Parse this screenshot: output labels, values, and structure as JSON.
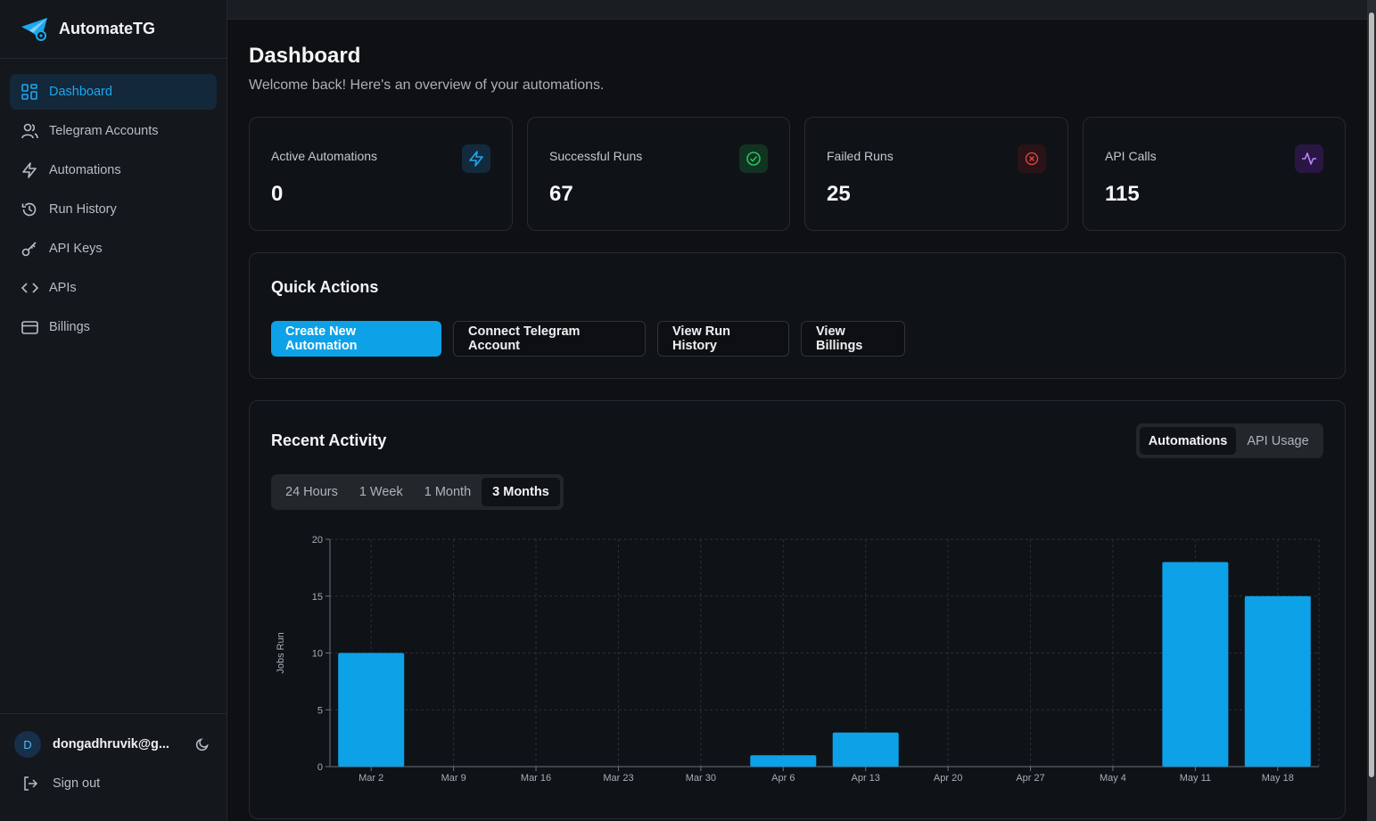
{
  "app": {
    "name": "AutomateTG"
  },
  "sidebar": {
    "items": [
      {
        "label": "Dashboard",
        "icon": "grid-icon",
        "active": true
      },
      {
        "label": "Telegram Accounts",
        "icon": "users-icon"
      },
      {
        "label": "Automations",
        "icon": "bolt-icon"
      },
      {
        "label": "Run History",
        "icon": "history-icon"
      },
      {
        "label": "API Keys",
        "icon": "key-icon"
      },
      {
        "label": "APIs",
        "icon": "code-icon"
      },
      {
        "label": "Billings",
        "icon": "card-icon"
      }
    ],
    "user": {
      "initial": "D",
      "email": "dongadhruvik@g..."
    },
    "signout_label": "Sign out"
  },
  "header": {
    "title": "Dashboard",
    "subtitle": "Welcome back! Here's an overview of your automations."
  },
  "stats": [
    {
      "label": "Active Automations",
      "value": "0",
      "icon": "bolt-icon",
      "color": "#1ea7f0"
    },
    {
      "label": "Successful Runs",
      "value": "67",
      "icon": "check-circle-icon",
      "color": "#22c55e"
    },
    {
      "label": "Failed Runs",
      "value": "25",
      "icon": "x-circle-icon",
      "color": "#ef4444"
    },
    {
      "label": "API Calls",
      "value": "115",
      "icon": "activity-icon",
      "color": "#a855f7"
    }
  ],
  "quick_actions": {
    "title": "Quick Actions",
    "buttons": [
      "Create New Automation",
      "Connect Telegram Account",
      "View Run History",
      "View Billings"
    ]
  },
  "activity": {
    "title": "Recent Activity",
    "view_toggle": [
      "Automations",
      "API Usage"
    ],
    "view_selected": "Automations",
    "ranges": [
      "24 Hours",
      "1 Week",
      "1 Month",
      "3 Months"
    ],
    "range_selected": "3 Months"
  },
  "chart_data": {
    "type": "bar",
    "categories": [
      "Mar 2",
      "Mar 9",
      "Mar 16",
      "Mar 23",
      "Mar 30",
      "Apr 6",
      "Apr 13",
      "Apr 20",
      "Apr 27",
      "May 4",
      "May 11",
      "May 18"
    ],
    "values": [
      10,
      0,
      0,
      0,
      0,
      1,
      3,
      0,
      0,
      0,
      18,
      15
    ],
    "ylabel": "Jobs Run",
    "ylim": [
      0,
      20
    ],
    "yticks": [
      0,
      5,
      10,
      15,
      20
    ],
    "grid": true,
    "bar_color": "#0da1e8"
  }
}
